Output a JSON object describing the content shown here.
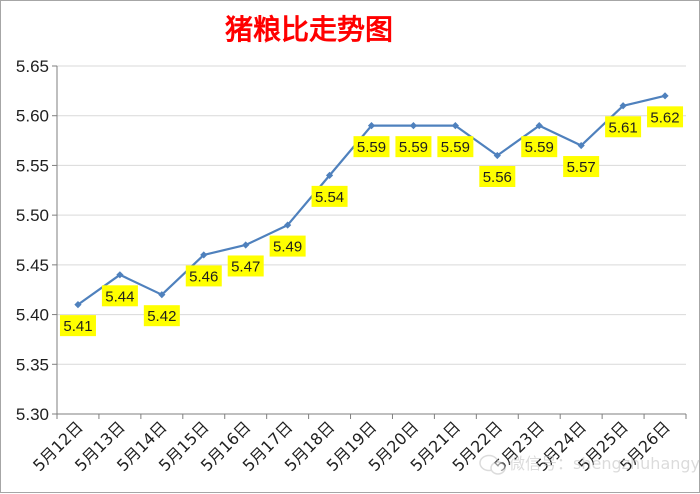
{
  "chart_data": {
    "type": "line",
    "title": "猪粮比走势图",
    "categories": [
      "5月12日",
      "5月13日",
      "5月14日",
      "5月15日",
      "5月16日",
      "5月17日",
      "5月18日",
      "5月19日",
      "5月20日",
      "5月21日",
      "5月22日",
      "5月23日",
      "5月24日",
      "5月25日",
      "5月26日"
    ],
    "values": [
      5.41,
      5.44,
      5.42,
      5.46,
      5.47,
      5.49,
      5.54,
      5.59,
      5.59,
      5.59,
      5.56,
      5.59,
      5.57,
      5.61,
      5.62
    ],
    "data_labels": [
      "5.41",
      "5.44",
      "5.42",
      "5.46",
      "5.47",
      "5.49",
      "5.54",
      "5.59",
      "5.59",
      "5.59",
      "5.56",
      "5.59",
      "5.57",
      "5.61",
      "5.62"
    ],
    "yticks": [
      "5.30",
      "5.35",
      "5.40",
      "5.45",
      "5.50",
      "5.55",
      "5.60",
      "5.65"
    ],
    "ylim": [
      5.3,
      5.65
    ],
    "xlabel": "",
    "ylabel": "",
    "grid": "horizontal",
    "legend": "none"
  },
  "colors": {
    "title": "#ff0000",
    "line": "#4f81bd",
    "label_bg": "#ffff00",
    "grid": "#d9d9d9",
    "axis": "#7f7f7f",
    "text": "#1f1f1f"
  },
  "watermark": "微信号：shengzhuhangye"
}
